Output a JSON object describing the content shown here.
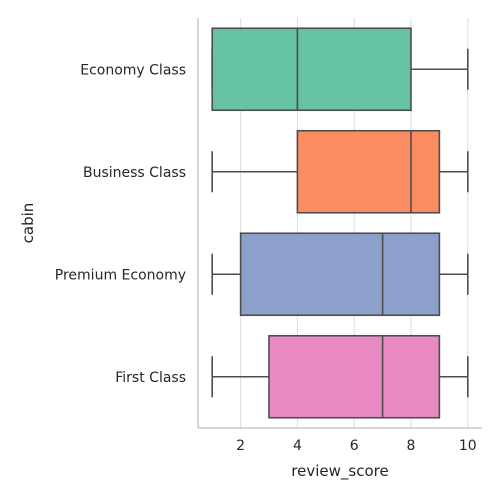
{
  "chart_data": {
    "type": "boxplot",
    "orientation": "horizontal",
    "xlabel": "review_score",
    "ylabel": "cabin",
    "xlim": [
      0.5,
      10.5
    ],
    "xticks": [
      2,
      4,
      6,
      8,
      10
    ],
    "grid": true,
    "categories": [
      "Economy Class",
      "Business Class",
      "Premium Economy",
      "First Class"
    ],
    "boxes": [
      {
        "category": "Economy Class",
        "whislo": 1,
        "q1": 1,
        "med": 4,
        "q3": 8,
        "whishi": 10,
        "color": "#66c2a5"
      },
      {
        "category": "Business Class",
        "whislo": 1,
        "q1": 4,
        "med": 8,
        "q3": 9,
        "whishi": 10,
        "color": "#fc8d62"
      },
      {
        "category": "Premium Economy",
        "whislo": 1,
        "q1": 2,
        "med": 7,
        "q3": 9,
        "whishi": 10,
        "color": "#8da0cb"
      },
      {
        "category": "First Class",
        "whislo": 1,
        "q1": 3,
        "med": 7,
        "q3": 9,
        "whishi": 10,
        "color": "#e78ac3"
      }
    ]
  }
}
